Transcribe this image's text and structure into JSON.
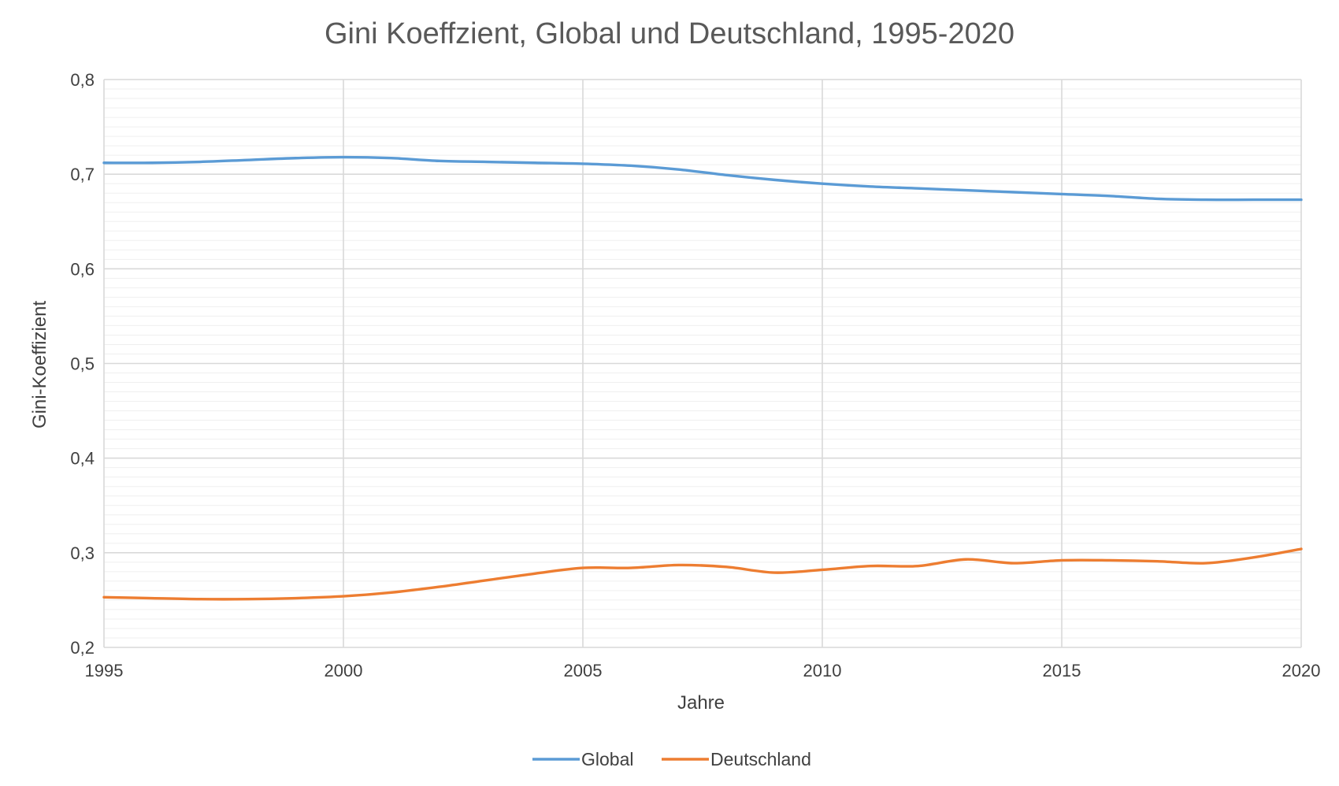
{
  "chart_data": {
    "type": "line",
    "title": "Gini Koeffzient, Global und Deutschland, 1995-2020",
    "xlabel": "Jahre",
    "ylabel": "Gini-Koeffizient",
    "x": [
      1995,
      1996,
      1997,
      1998,
      1999,
      2000,
      2001,
      2002,
      2003,
      2004,
      2005,
      2006,
      2007,
      2008,
      2009,
      2010,
      2011,
      2012,
      2013,
      2014,
      2015,
      2016,
      2017,
      2018,
      2019,
      2020
    ],
    "xlim": [
      1995,
      2020
    ],
    "ylim": [
      0.2,
      0.8
    ],
    "x_ticks": [
      "1995",
      "2000",
      "2005",
      "2010",
      "2015",
      "2020"
    ],
    "y_ticks": [
      "0,2",
      "0,3",
      "0,4",
      "0,5",
      "0,6",
      "0,7",
      "0,8"
    ],
    "grid": true,
    "legend_position": "bottom",
    "series": [
      {
        "name": "Global",
        "color": "#5b9bd5",
        "values": [
          0.712,
          0.712,
          0.713,
          0.715,
          0.717,
          0.718,
          0.717,
          0.714,
          0.713,
          0.712,
          0.711,
          0.709,
          0.705,
          0.699,
          0.694,
          0.69,
          0.687,
          0.685,
          0.683,
          0.681,
          0.679,
          0.677,
          0.674,
          0.673,
          0.673,
          0.673
        ]
      },
      {
        "name": "Deutschland",
        "color": "#ed7d31",
        "values": [
          0.253,
          0.252,
          0.251,
          0.251,
          0.252,
          0.254,
          0.258,
          0.264,
          0.271,
          0.278,
          0.284,
          0.284,
          0.287,
          0.285,
          0.279,
          0.282,
          0.286,
          0.286,
          0.293,
          0.289,
          0.292,
          0.292,
          0.291,
          0.289,
          0.295,
          0.304
        ]
      }
    ]
  }
}
